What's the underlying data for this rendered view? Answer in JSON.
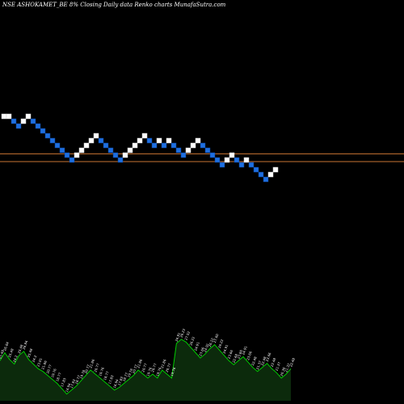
{
  "chart_data": {
    "type": "renko",
    "title": "NSE ASHOKAMET_BE 8% Closing Daily data Renko charts MunafaSutra.com",
    "price_range": [
      0,
      100
    ],
    "reference_lines": [
      {
        "value": 57.4,
        "color": "#c87533"
      },
      {
        "value": 55.0,
        "color": "#c87533"
      }
    ],
    "colors": {
      "up": "#ffffff",
      "down": "#1e6fe0",
      "volume_area": "#0c2a0c",
      "volume_line": "#00cc00"
    },
    "bricks": [
      {
        "dir": "up",
        "level": 69.0
      },
      {
        "dir": "up",
        "level": 69.0
      },
      {
        "dir": "down",
        "level": 67.5
      },
      {
        "dir": "down",
        "level": 66.0
      },
      {
        "dir": "up",
        "level": 67.5
      },
      {
        "dir": "up",
        "level": 69.0
      },
      {
        "dir": "down",
        "level": 67.5
      },
      {
        "dir": "down",
        "level": 66.0
      },
      {
        "dir": "down",
        "level": 64.5
      },
      {
        "dir": "down",
        "level": 63.0
      },
      {
        "dir": "down",
        "level": 61.5
      },
      {
        "dir": "down",
        "level": 60.0
      },
      {
        "dir": "down",
        "level": 58.5
      },
      {
        "dir": "down",
        "level": 57.0
      },
      {
        "dir": "down",
        "level": 55.5
      },
      {
        "dir": "up",
        "level": 57.0
      },
      {
        "dir": "up",
        "level": 58.5
      },
      {
        "dir": "up",
        "level": 60.0
      },
      {
        "dir": "up",
        "level": 61.5
      },
      {
        "dir": "up",
        "level": 63.0
      },
      {
        "dir": "down",
        "level": 61.5
      },
      {
        "dir": "down",
        "level": 60.0
      },
      {
        "dir": "down",
        "level": 58.5
      },
      {
        "dir": "down",
        "level": 57.0
      },
      {
        "dir": "down",
        "level": 55.5
      },
      {
        "dir": "up",
        "level": 57.0
      },
      {
        "dir": "up",
        "level": 58.5
      },
      {
        "dir": "up",
        "level": 60.0
      },
      {
        "dir": "up",
        "level": 61.5
      },
      {
        "dir": "up",
        "level": 63.0
      },
      {
        "dir": "down",
        "level": 61.5
      },
      {
        "dir": "down",
        "level": 60.0
      },
      {
        "dir": "up",
        "level": 61.5
      },
      {
        "dir": "down",
        "level": 60.0
      },
      {
        "dir": "up",
        "level": 61.5
      },
      {
        "dir": "down",
        "level": 60.0
      },
      {
        "dir": "down",
        "level": 58.5
      },
      {
        "dir": "down",
        "level": 57.0
      },
      {
        "dir": "up",
        "level": 58.5
      },
      {
        "dir": "up",
        "level": 60.0
      },
      {
        "dir": "up",
        "level": 61.5
      },
      {
        "dir": "down",
        "level": 60.0
      },
      {
        "dir": "down",
        "level": 58.5
      },
      {
        "dir": "down",
        "level": 57.0
      },
      {
        "dir": "down",
        "level": 55.5
      },
      {
        "dir": "down",
        "level": 54.0
      },
      {
        "dir": "up",
        "level": 55.5
      },
      {
        "dir": "up",
        "level": 57.0
      },
      {
        "dir": "down",
        "level": 55.5
      },
      {
        "dir": "down",
        "level": 54.0
      },
      {
        "dir": "up",
        "level": 55.5
      },
      {
        "dir": "down",
        "level": 54.0
      },
      {
        "dir": "down",
        "level": 52.5
      },
      {
        "dir": "down",
        "level": 51.0
      },
      {
        "dir": "down",
        "level": 49.5
      },
      {
        "dir": "up",
        "level": 51.0
      },
      {
        "dir": "up",
        "level": 52.5
      }
    ],
    "volume_series": [
      {
        "label": "25.48",
        "value": 60
      },
      {
        "label": "26.84",
        "value": 72
      },
      {
        "label": "25.48",
        "value": 62
      },
      {
        "label": "24.2",
        "value": 55
      },
      {
        "label": "25.48",
        "value": 68
      },
      {
        "label": "26.84",
        "value": 74
      },
      {
        "label": "25.48",
        "value": 62
      },
      {
        "label": "24.2",
        "value": 55
      },
      {
        "label": "23.01",
        "value": 48
      },
      {
        "label": "21.86",
        "value": 44
      },
      {
        "label": "20.77",
        "value": 38
      },
      {
        "label": "19.76",
        "value": 32
      },
      {
        "label": "18.77",
        "value": 26
      },
      {
        "label": "17.83",
        "value": 18
      },
      {
        "label": "16.94",
        "value": 10
      },
      {
        "label": "17.83",
        "value": 16
      },
      {
        "label": "18.77",
        "value": 22
      },
      {
        "label": "19.76",
        "value": 30
      },
      {
        "label": "20.77",
        "value": 38
      },
      {
        "label": "21.86",
        "value": 46
      },
      {
        "label": "20.77",
        "value": 40
      },
      {
        "label": "19.76",
        "value": 34
      },
      {
        "label": "18.77",
        "value": 28
      },
      {
        "label": "17.83",
        "value": 22
      },
      {
        "label": "16.94",
        "value": 16
      },
      {
        "label": "17.83",
        "value": 20
      },
      {
        "label": "18.77",
        "value": 26
      },
      {
        "label": "19.76",
        "value": 32
      },
      {
        "label": "20.77",
        "value": 38
      },
      {
        "label": "21.86",
        "value": 46
      },
      {
        "label": "20.77",
        "value": 40
      },
      {
        "label": "19.76",
        "value": 34
      },
      {
        "label": "20.77",
        "value": 40
      },
      {
        "label": "19.76",
        "value": 34
      },
      {
        "label": "21.86",
        "value": 46
      },
      {
        "label": "20.77",
        "value": 40
      },
      {
        "label": "19.76",
        "value": 34
      },
      {
        "label": "24.91",
        "value": 86
      },
      {
        "label": "26.22",
        "value": 92
      },
      {
        "label": "27.52",
        "value": 88
      },
      {
        "label": "26.22",
        "value": 80
      },
      {
        "label": "24.91",
        "value": 72
      },
      {
        "label": "23.66",
        "value": 64
      },
      {
        "label": "24.91",
        "value": 70
      },
      {
        "label": "26.22",
        "value": 78
      },
      {
        "label": "27.60",
        "value": 84
      },
      {
        "label": "26.22",
        "value": 76
      },
      {
        "label": "24.91",
        "value": 68
      },
      {
        "label": "23.66",
        "value": 60
      },
      {
        "label": "22.48",
        "value": 54
      },
      {
        "label": "23.66",
        "value": 60
      },
      {
        "label": "24.91",
        "value": 66
      },
      {
        "label": "23.66",
        "value": 58
      },
      {
        "label": "22.48",
        "value": 50
      },
      {
        "label": "21.37",
        "value": 44
      },
      {
        "label": "22.48",
        "value": 50
      },
      {
        "label": "23.66",
        "value": 56
      },
      {
        "label": "22.48",
        "value": 48
      },
      {
        "label": "21.37",
        "value": 42
      },
      {
        "label": "20.30",
        "value": 34
      },
      {
        "label": "21.37",
        "value": 40
      },
      {
        "label": "22.48",
        "value": 48
      }
    ]
  }
}
